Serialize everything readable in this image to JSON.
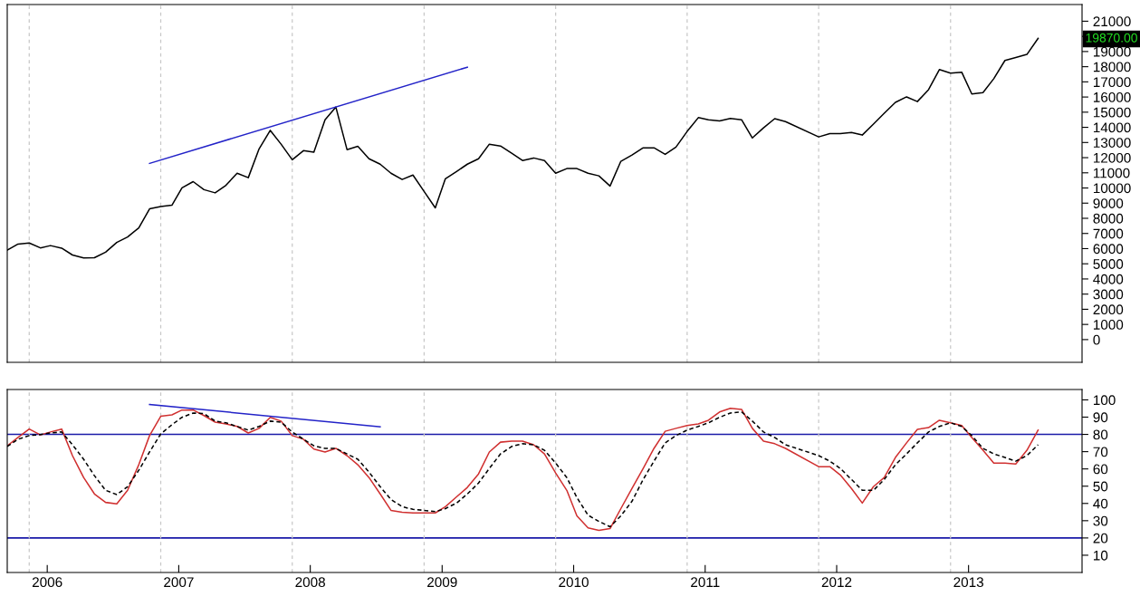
{
  "chart_data": [
    {
      "type": "line",
      "x": [
        "2005-11",
        "2005-12",
        "2006-01",
        "2006-02",
        "2006-03",
        "2006-04",
        "2006-05",
        "2006-06",
        "2006-07",
        "2006-08",
        "2006-09",
        "2006-10",
        "2006-11",
        "2006-12",
        "2007-01",
        "2007-02",
        "2007-03",
        "2007-04",
        "2007-05",
        "2007-06",
        "2007-07",
        "2007-08",
        "2007-09",
        "2007-10",
        "2007-11",
        "2007-12",
        "2008-01",
        "2008-02",
        "2008-03",
        "2008-04",
        "2008-05",
        "2008-06",
        "2008-07",
        "2008-08",
        "2008-09",
        "2008-10",
        "2008-11",
        "2008-12",
        "2009-01",
        "2009-02",
        "2009-03",
        "2009-04",
        "2009-05",
        "2009-06",
        "2009-07",
        "2009-08",
        "2009-09",
        "2009-10",
        "2009-11",
        "2009-12",
        "2010-01",
        "2010-02",
        "2010-03",
        "2010-04",
        "2010-05",
        "2010-06",
        "2010-07",
        "2010-08",
        "2010-09",
        "2010-10",
        "2010-11",
        "2010-12",
        "2011-01",
        "2011-02",
        "2011-03",
        "2011-04",
        "2011-05",
        "2011-06",
        "2011-07",
        "2011-08",
        "2011-09",
        "2011-10",
        "2012-01",
        "2012-02",
        "2012-03",
        "2012-04",
        "2012-05",
        "2012-06",
        "2012-07",
        "2012-08",
        "2012-09",
        "2012-10",
        "2012-11",
        "2012-12",
        "2013-01",
        "2013-02",
        "2013-03",
        "2013-04",
        "2013-05",
        "2013-06",
        "2013-07",
        "2013-08",
        "2013-09"
      ],
      "series": [
        {
          "color": "#000000",
          "values": [
            5900,
            6300,
            6370,
            6050,
            6200,
            6030,
            5580,
            5380,
            5400,
            5770,
            6410,
            6770,
            7370,
            8620,
            8770,
            8860,
            10010,
            10420,
            9890,
            9680,
            10180,
            10970,
            10680,
            12580,
            13800,
            12890,
            11860,
            12460,
            12360,
            14500,
            15340,
            12530,
            12750,
            11930,
            11570,
            10970,
            10560,
            10850,
            9770,
            8690,
            10610,
            11090,
            11570,
            11930,
            12890,
            12770,
            12290,
            11810,
            11980,
            11810,
            10970,
            11280,
            11280,
            10970,
            10800,
            10130,
            11760,
            12170,
            12650,
            12650,
            12220,
            12700,
            13730,
            14640,
            14500,
            14420,
            14590,
            14500,
            13300,
            13970,
            14570,
            14380,
            13370,
            13590,
            13590,
            13660,
            13490,
            14210,
            14930,
            15650,
            16010,
            15700,
            16490,
            17810,
            17570,
            17640,
            16200,
            16290,
            17210,
            18410,
            18600,
            18810,
            19870
          ]
        },
        {
          "color": "#2323c8",
          "x": [
            "2006-12",
            "2009-05"
          ],
          "values": [
            11620,
            17970
          ]
        }
      ],
      "xlim": [
        "2005-11",
        "2014-01"
      ],
      "ylim": [
        -1500,
        22100
      ],
      "yticks": [
        0,
        1000,
        2000,
        3000,
        4000,
        5000,
        6000,
        7000,
        8000,
        9000,
        10000,
        11000,
        12000,
        13000,
        14000,
        15000,
        16000,
        17000,
        18000,
        19000,
        {
          "value": 20000,
          "label": null
        },
        21000
      ],
      "annotations": [
        "19870.00"
      ],
      "ref_lines": [
        {
          "axis": "x",
          "value": "2006-01",
          "color": "#c8c8c8",
          "line_style": "dashed"
        },
        {
          "axis": "x",
          "value": "2007-01",
          "color": "#c8c8c8",
          "line_style": "dashed"
        },
        {
          "axis": "x",
          "value": "2008-01",
          "color": "#c8c8c8",
          "line_style": "dashed"
        },
        {
          "axis": "x",
          "value": "2009-01",
          "color": "#c8c8c8",
          "line_style": "dashed"
        },
        {
          "axis": "x",
          "value": "2010-01",
          "color": "#c8c8c8",
          "line_style": "dashed"
        },
        {
          "axis": "x",
          "value": "2011-01",
          "color": "#c8c8c8",
          "line_style": "dashed"
        },
        {
          "axis": "x",
          "value": "2012-01",
          "color": "#c8c8c8",
          "line_style": "dashed"
        },
        {
          "axis": "x",
          "value": "2013-01",
          "color": "#c8c8c8",
          "line_style": "dashed"
        }
      ],
      "tick_labels": "y",
      "line_style": "solid"
    },
    {
      "type": "line",
      "x": [
        "2005-11",
        "2005-12",
        "2006-01",
        "2006-02",
        "2006-03",
        "2006-04",
        "2006-05",
        "2006-06",
        "2006-07",
        "2006-08",
        "2006-09",
        "2006-10",
        "2006-11",
        "2006-12",
        "2007-01",
        "2007-02",
        "2007-03",
        "2007-04",
        "2007-05",
        "2007-06",
        "2007-07",
        "2007-08",
        "2007-09",
        "2007-10",
        "2007-11",
        "2007-12",
        "2008-01",
        "2008-02",
        "2008-03",
        "2008-04",
        "2008-05",
        "2008-06",
        "2008-07",
        "2008-08",
        "2008-09",
        "2008-10",
        "2008-11",
        "2008-12",
        "2009-01",
        "2009-02",
        "2009-03",
        "2009-04",
        "2009-05",
        "2009-06",
        "2009-07",
        "2009-08",
        "2009-09",
        "2009-10",
        "2009-11",
        "2009-12",
        "2010-01",
        "2010-02",
        "2010-03",
        "2010-04",
        "2010-05",
        "2010-06",
        "2010-07",
        "2010-08",
        "2010-09",
        "2010-10",
        "2010-11",
        "2010-12",
        "2011-01",
        "2011-02",
        "2011-03",
        "2011-04",
        "2011-05",
        "2011-06",
        "2011-07",
        "2011-08",
        "2011-09",
        "2011-10",
        "2012-01",
        "2012-02",
        "2012-03",
        "2012-04",
        "2012-05",
        "2012-06",
        "2012-07",
        "2012-08",
        "2012-09",
        "2012-10",
        "2012-11",
        "2012-12",
        "2013-01",
        "2013-02",
        "2013-03",
        "2013-04",
        "2013-05",
        "2013-06",
        "2013-07",
        "2013-08",
        "2013-09"
      ],
      "series": [
        {
          "color": "#d03030",
          "line_style": "solid",
          "values": [
            73.4,
            78.2,
            83.1,
            79.7,
            81.4,
            83.1,
            67.7,
            55.0,
            45.5,
            40.6,
            39.8,
            47.6,
            62.4,
            79.3,
            90.5,
            91.3,
            94.1,
            94.1,
            90.9,
            87.1,
            86.1,
            84.6,
            80.8,
            83.5,
            89.9,
            87.7,
            79.3,
            77.2,
            71.5,
            69.8,
            71.9,
            67.7,
            62.4,
            55.0,
            45.5,
            36.0,
            34.9,
            34.5,
            34.5,
            34.5,
            38.1,
            43.8,
            49.3,
            57.1,
            69.8,
            75.5,
            76.1,
            76.1,
            74.0,
            68.7,
            57.7,
            47.6,
            32.8,
            25.8,
            24.4,
            25.4,
            37.0,
            48.7,
            60.3,
            71.9,
            81.8,
            83.5,
            85.2,
            86.1,
            88.2,
            93.0,
            95.1,
            94.5,
            83.5,
            76.1,
            74.6,
            71.9,
            61.3,
            61.3,
            56.5,
            48.7,
            40.2,
            49.7,
            55.0,
            66.6,
            75.1,
            82.9,
            83.9,
            88.2,
            86.7,
            85.2,
            78.2,
            70.8,
            63.4,
            63.4,
            62.8,
            70.8,
            82.5
          ]
        },
        {
          "color": "#000000",
          "line_style": "dashed",
          "values": [
            73.0,
            77.2,
            79.3,
            79.9,
            80.8,
            81.4,
            74.0,
            65.6,
            56.1,
            47.6,
            45.1,
            49.7,
            59.2,
            69.8,
            80.3,
            85.6,
            89.9,
            92.4,
            92.0,
            87.7,
            86.7,
            84.6,
            82.5,
            84.6,
            87.7,
            87.1,
            81.4,
            77.2,
            73.4,
            71.9,
            71.9,
            68.7,
            65.6,
            58.2,
            49.7,
            42.3,
            38.1,
            36.6,
            36.0,
            35.3,
            37.0,
            40.2,
            45.5,
            51.8,
            60.3,
            68.7,
            73.0,
            74.6,
            74.0,
            70.8,
            63.4,
            55.0,
            43.4,
            33.2,
            29.6,
            26.5,
            32.8,
            41.3,
            53.9,
            64.5,
            75.1,
            79.3,
            82.5,
            84.6,
            86.7,
            89.9,
            92.4,
            93.0,
            87.7,
            81.4,
            78.2,
            74.0,
            67.7,
            64.5,
            60.3,
            53.9,
            47.6,
            47.6,
            53.9,
            62.4,
            68.7,
            75.1,
            81.4,
            84.6,
            86.7,
            84.6,
            79.3,
            71.9,
            68.7,
            66.6,
            64.5,
            67.7,
            74.0
          ]
        },
        {
          "color": "#2323c8",
          "line_style": "solid",
          "x": [
            "2006-12",
            "2008-09"
          ],
          "values": [
            97.3,
            84.4
          ]
        }
      ],
      "xlim": [
        "2005-11",
        "2014-01"
      ],
      "ylim": [
        0,
        106
      ],
      "xticks": [
        {
          "value": "2006-02-20",
          "label": "2006"
        },
        {
          "value": "2007-02-20",
          "label": "2007"
        },
        {
          "value": "2008-02-20",
          "label": "2008"
        },
        {
          "value": "2009-02-20",
          "label": "2009"
        },
        {
          "value": "2010-02-20",
          "label": "2010"
        },
        {
          "value": "2011-02-20",
          "label": "2011"
        },
        {
          "value": "2012-02-20",
          "label": "2012"
        },
        {
          "value": "2013-02-20",
          "label": "2013"
        }
      ],
      "yticks": [
        10,
        20,
        30,
        40,
        50,
        60,
        70,
        80,
        90,
        100
      ],
      "ref_lines": [
        {
          "axis": "y",
          "value": 80,
          "color": "#1a1aa8"
        },
        {
          "axis": "y",
          "value": 20,
          "color": "#1a1aa8"
        },
        {
          "axis": "x",
          "value": "2006-01",
          "color": "#c8c8c8",
          "line_style": "dashed"
        },
        {
          "axis": "x",
          "value": "2007-01",
          "color": "#c8c8c8",
          "line_style": "dashed"
        },
        {
          "axis": "x",
          "value": "2008-01",
          "color": "#c8c8c8",
          "line_style": "dashed"
        },
        {
          "axis": "x",
          "value": "2009-01",
          "color": "#c8c8c8",
          "line_style": "dashed"
        },
        {
          "axis": "x",
          "value": "2010-01",
          "color": "#c8c8c8",
          "line_style": "dashed"
        },
        {
          "axis": "x",
          "value": "2011-01",
          "color": "#c8c8c8",
          "line_style": "dashed"
        },
        {
          "axis": "x",
          "value": "2012-01",
          "color": "#c8c8c8",
          "line_style": "dashed"
        },
        {
          "axis": "x",
          "value": "2013-01",
          "color": "#c8c8c8",
          "line_style": "dashed"
        }
      ]
    }
  ]
}
